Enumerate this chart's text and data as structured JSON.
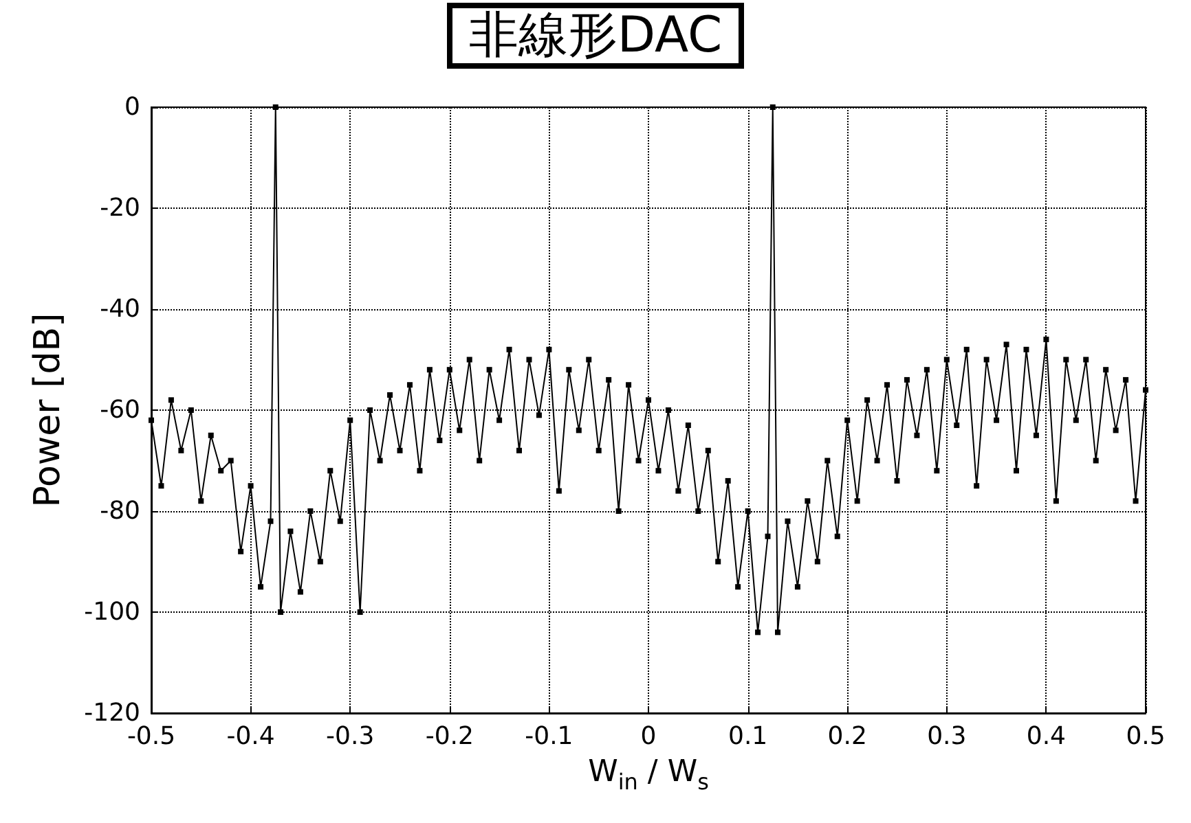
{
  "chart_data": {
    "type": "line",
    "title": "非線形DAC",
    "xlabel": "W$_{in}$ / W$_{s}$",
    "ylabel": "Power [dB]",
    "x": [
      -0.5,
      -0.49,
      -0.48,
      -0.47,
      -0.46,
      -0.45,
      -0.44,
      -0.43,
      -0.42,
      -0.41,
      -0.4,
      -0.39,
      -0.38,
      -0.375,
      -0.37,
      -0.36,
      -0.35,
      -0.34,
      -0.33,
      -0.32,
      -0.31,
      -0.3,
      -0.29,
      -0.28,
      -0.27,
      -0.26,
      -0.25,
      -0.24,
      -0.23,
      -0.22,
      -0.21,
      -0.2,
      -0.19,
      -0.18,
      -0.17,
      -0.16,
      -0.15,
      -0.14,
      -0.13,
      -0.12,
      -0.11,
      -0.1,
      -0.09,
      -0.08,
      -0.07,
      -0.06,
      -0.05,
      -0.04,
      -0.03,
      -0.02,
      -0.01,
      0,
      0.01,
      0.02,
      0.03,
      0.04,
      0.05,
      0.06,
      0.07,
      0.08,
      0.09,
      0.1,
      0.11,
      0.12,
      0.125,
      0.13,
      0.14,
      0.15,
      0.16,
      0.17,
      0.18,
      0.19,
      0.2,
      0.21,
      0.22,
      0.23,
      0.24,
      0.25,
      0.26,
      0.27,
      0.28,
      0.29,
      0.3,
      0.31,
      0.32,
      0.33,
      0.34,
      0.35,
      0.36,
      0.37,
      0.38,
      0.39,
      0.4,
      0.41,
      0.42,
      0.43,
      0.44,
      0.45,
      0.46,
      0.47,
      0.48,
      0.49,
      0.5
    ],
    "series": [
      {
        "color": "#000000",
        "values": [
          -62,
          -75,
          -58,
          -68,
          -60,
          -78,
          -65,
          -72,
          -70,
          -88,
          -75,
          -95,
          -82,
          0,
          -100,
          -84,
          -96,
          -80,
          -90,
          -72,
          -82,
          -62,
          -100,
          -60,
          -70,
          -57,
          -68,
          -55,
          -72,
          -52,
          -66,
          -52,
          -64,
          -50,
          -70,
          -52,
          -62,
          -48,
          -68,
          -50,
          -61,
          -48,
          -76,
          -52,
          -64,
          -50,
          -68,
          -54,
          -80,
          -55,
          -70,
          -58,
          -72,
          -60,
          -76,
          -63,
          -80,
          -68,
          -90,
          -74,
          -95,
          -80,
          -104,
          -85,
          0,
          -104,
          -82,
          -95,
          -78,
          -90,
          -70,
          -85,
          -62,
          -78,
          -58,
          -70,
          -55,
          -74,
          -54,
          -65,
          -52,
          -72,
          -50,
          -63,
          -48,
          -75,
          -50,
          -62,
          -47,
          -72,
          -48,
          -65,
          -46,
          -78,
          -50,
          -62,
          -50,
          -70,
          -52,
          -64,
          -54,
          -78,
          -56
        ]
      }
    ],
    "xlim": [
      -0.5,
      0.5
    ],
    "xticks": [
      -0.5,
      -0.4,
      -0.3,
      -0.2,
      -0.1,
      0,
      0.1,
      0.2,
      0.3,
      0.4,
      0.5
    ],
    "ylim": [
      -120,
      0
    ],
    "yticks": [
      -120,
      -100,
      -80,
      -60,
      -40,
      -20,
      0
    ],
    "grid": true,
    "marker": "square",
    "line_style": "solid"
  }
}
